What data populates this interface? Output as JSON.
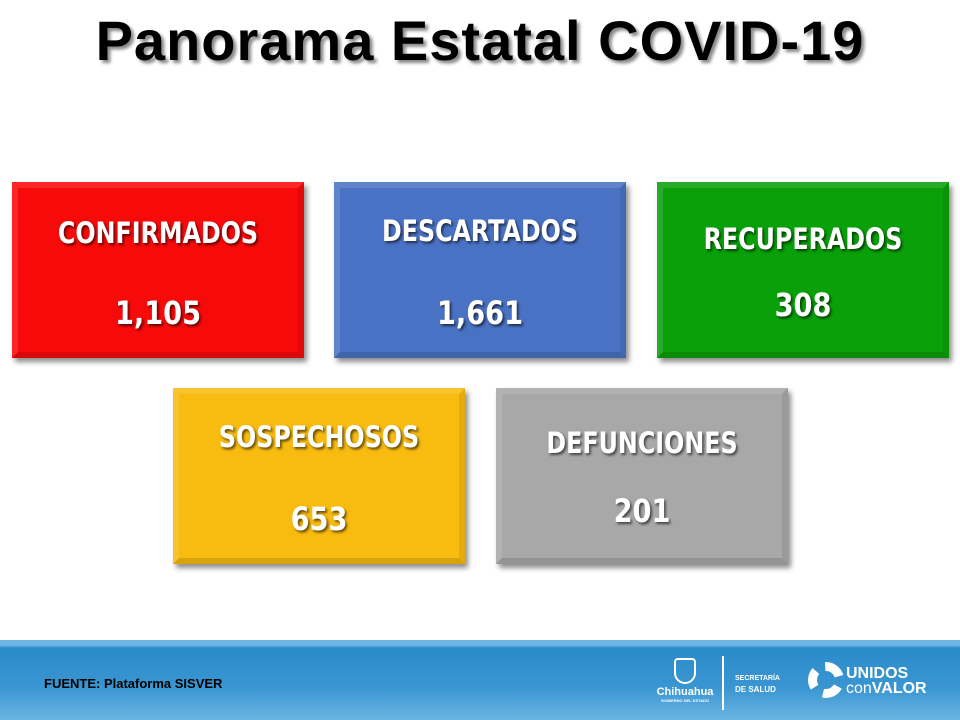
{
  "title": "Panorama Estatal COVID-19",
  "cards": [
    {
      "label": "CONFIRMADOS",
      "value": "1,105",
      "color": "#f70a0a"
    },
    {
      "label": "DESCARTADOS",
      "value": "1,661",
      "color": "#4a72c4"
    },
    {
      "label": "RECUPERADOS",
      "value": "308",
      "color": "#0aa00a"
    },
    {
      "label": "SOSPECHOSOS",
      "value": "653",
      "color": "#f8bb10"
    },
    {
      "label": "DEFUNCIONES",
      "value": "201",
      "color": "#a8a8a8"
    }
  ],
  "footer": {
    "source": "FUENTE: Plataforma SISVER",
    "logo_chihuahua": "Chihuahua",
    "logo_gobierno": "GOBIERNO DEL ESTADO",
    "secretaria_line1": "SECRETARÍA",
    "secretaria_line2": "DE SALUD",
    "unidos": "UNIDOS",
    "con": "con",
    "valor": "VALOR"
  }
}
